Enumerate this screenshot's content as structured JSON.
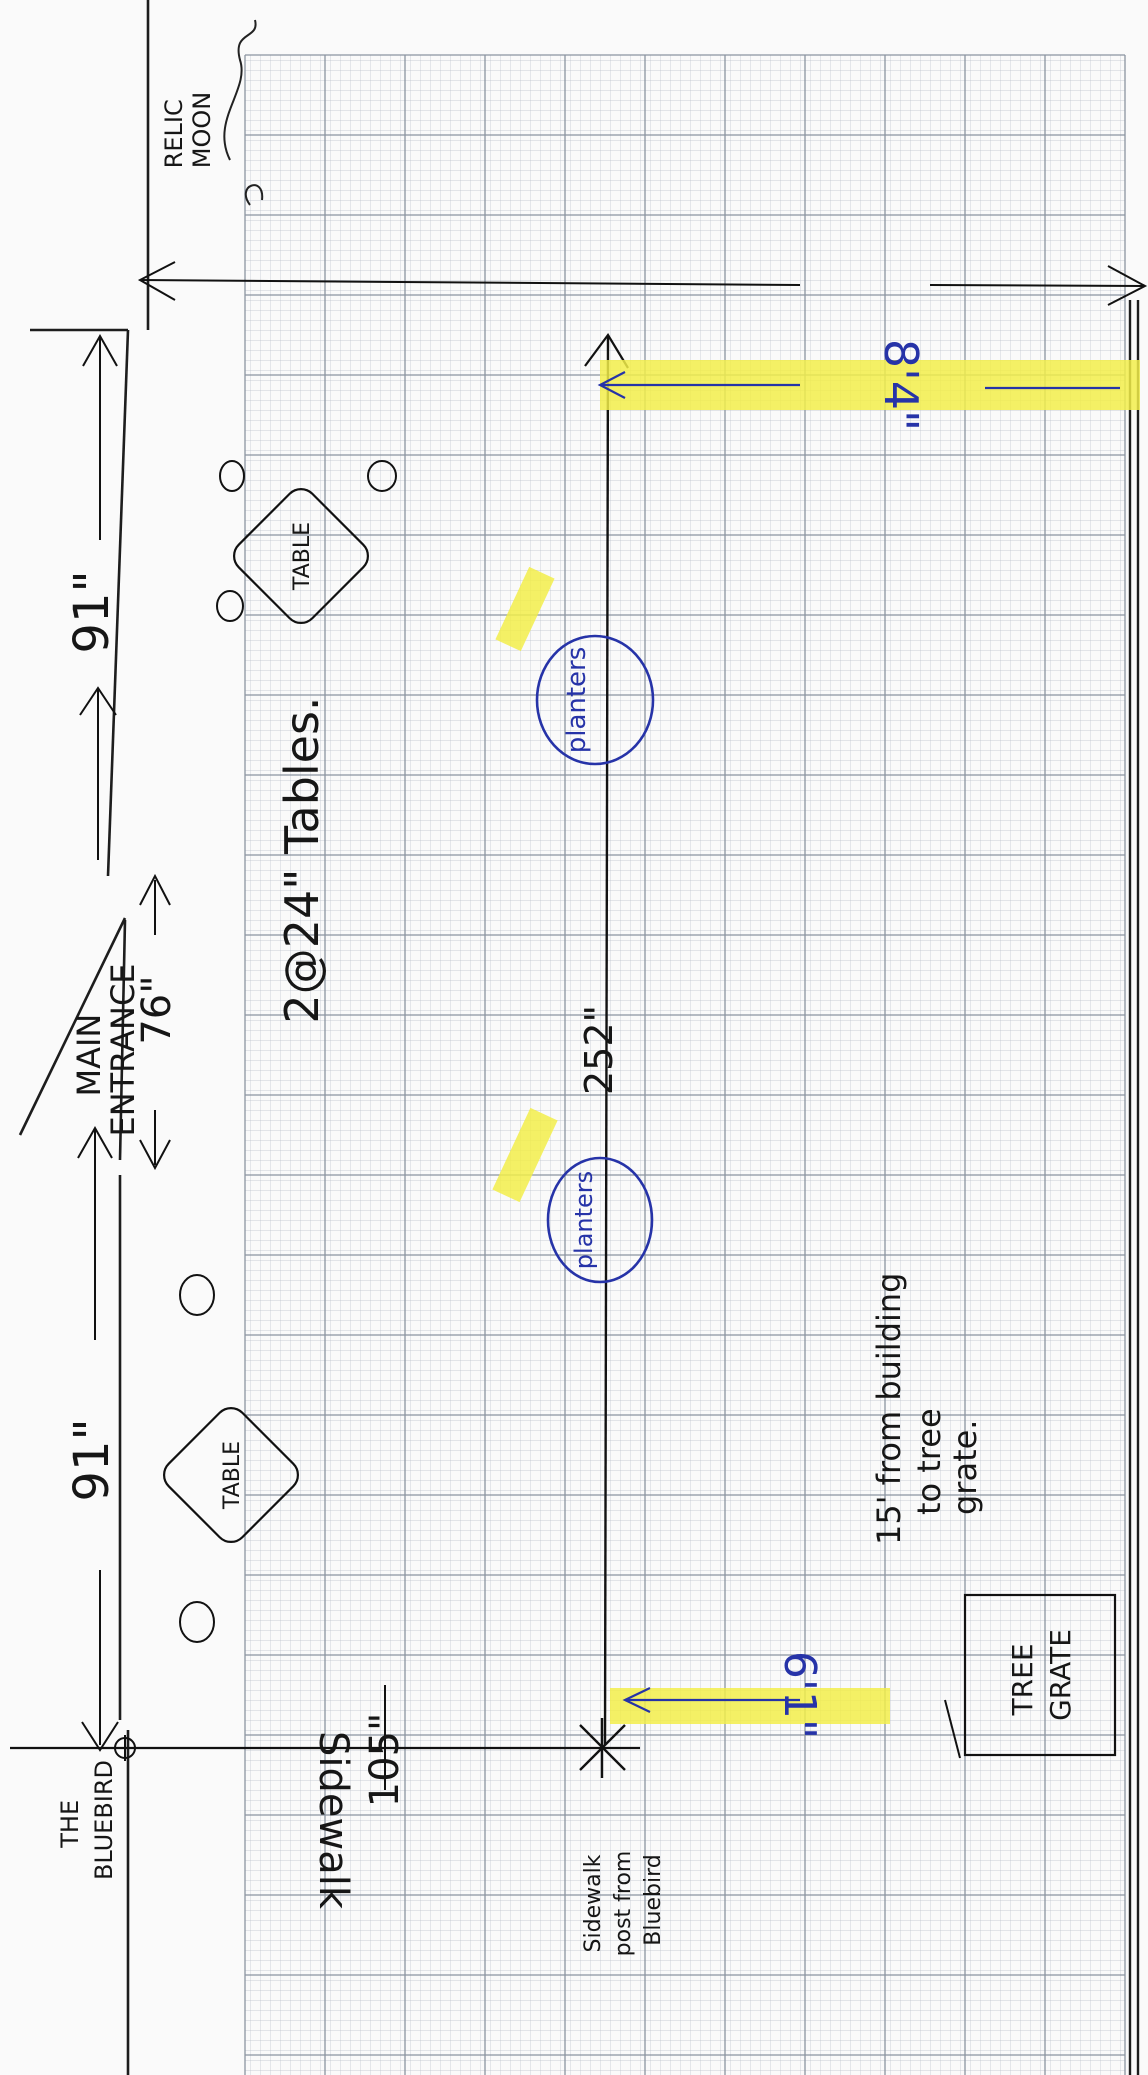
{
  "labels": {
    "the_bluebird": [
      "THE",
      "BLUEBIRD"
    ],
    "sidewalk": "Sidewalk",
    "sidewalk_post": [
      "Sidewalk",
      "post from",
      "Bluebird"
    ],
    "relic_moon": [
      "RELIC",
      "MOON"
    ],
    "main_entrance": [
      "MAIN",
      "ENTRANCE"
    ],
    "entrance_width": "76\"",
    "left_frontage": "91\"",
    "right_frontage": "91\"",
    "post_offset": "105\"",
    "tables_note": "2@24\" Tables.",
    "table_label": "TABLE",
    "tree_grate": [
      "TREE",
      "GRATE"
    ],
    "tree_grate_note": [
      "15' from building",
      "to tree",
      "grate."
    ],
    "sidewalk_run": "252\"",
    "planter_label": "planters",
    "left_clearance": "6'1\"",
    "right_clearance": "8'4\""
  },
  "colors": {
    "ink": "#161616",
    "blue_ink": "#2633a8",
    "highlight": "#f3ee4a",
    "grid": "#9fa7b3"
  }
}
